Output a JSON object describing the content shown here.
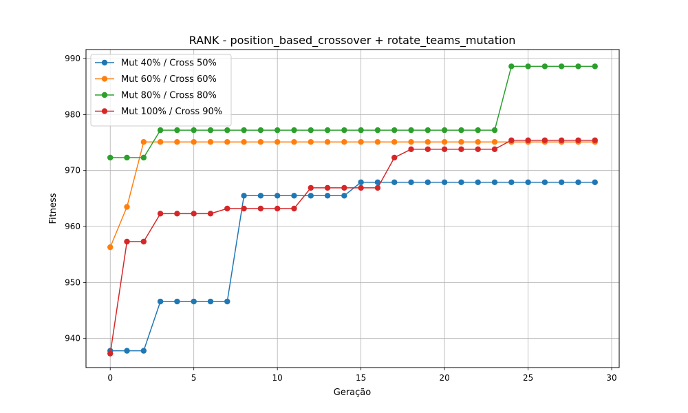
{
  "chart_data": {
    "type": "line",
    "title": "RANK - position_based_crossover + rotate_teams_mutation",
    "xlabel": "Geração",
    "ylabel": "Fitness",
    "xlim": [
      -1.45,
      30.45
    ],
    "ylim": [
      934.8,
      991.6
    ],
    "xticks": [
      0,
      5,
      10,
      15,
      20,
      25,
      30
    ],
    "yticks": [
      940,
      950,
      960,
      970,
      980,
      990
    ],
    "grid": true,
    "legend_position": "top-left",
    "x": [
      0,
      1,
      2,
      3,
      4,
      5,
      6,
      7,
      8,
      9,
      10,
      11,
      12,
      13,
      14,
      15,
      16,
      17,
      18,
      19,
      20,
      21,
      22,
      23,
      24,
      25,
      26,
      27,
      28,
      29
    ],
    "series": [
      {
        "name": "Mut 40% / Cross 50%",
        "color": "#1f77b4",
        "values": [
          937.8,
          937.8,
          937.8,
          946.6,
          946.6,
          946.6,
          946.6,
          946.6,
          965.5,
          965.5,
          965.5,
          965.5,
          965.5,
          965.5,
          965.5,
          967.9,
          967.9,
          967.9,
          967.9,
          967.9,
          967.9,
          967.9,
          967.9,
          967.9,
          967.9,
          967.9,
          967.9,
          967.9,
          967.9,
          967.9
        ]
      },
      {
        "name": "Mut 60% / Cross 60%",
        "color": "#ff7f0e",
        "values": [
          956.3,
          963.5,
          975.1,
          975.1,
          975.1,
          975.1,
          975.1,
          975.1,
          975.1,
          975.1,
          975.1,
          975.1,
          975.1,
          975.1,
          975.1,
          975.1,
          975.1,
          975.1,
          975.1,
          975.1,
          975.1,
          975.1,
          975.1,
          975.1,
          975.1,
          975.1,
          975.1,
          975.1,
          975.1,
          975.1
        ]
      },
      {
        "name": "Mut 80% / Cross 80%",
        "color": "#2ca02c",
        "values": [
          972.3,
          972.3,
          972.3,
          977.2,
          977.2,
          977.2,
          977.2,
          977.2,
          977.2,
          977.2,
          977.2,
          977.2,
          977.2,
          977.2,
          977.2,
          977.2,
          977.2,
          977.2,
          977.2,
          977.2,
          977.2,
          977.2,
          977.2,
          977.2,
          988.6,
          988.6,
          988.6,
          988.6,
          988.6,
          988.6
        ]
      },
      {
        "name": "Mut 100% / Cross 90%",
        "color": "#d62728",
        "values": [
          937.3,
          957.3,
          957.3,
          962.3,
          962.3,
          962.3,
          962.3,
          963.2,
          963.2,
          963.2,
          963.2,
          963.2,
          966.9,
          966.9,
          966.9,
          966.9,
          966.9,
          972.3,
          973.8,
          973.8,
          973.8,
          973.8,
          973.8,
          973.8,
          975.4,
          975.4,
          975.4,
          975.4,
          975.4,
          975.4
        ]
      }
    ]
  }
}
